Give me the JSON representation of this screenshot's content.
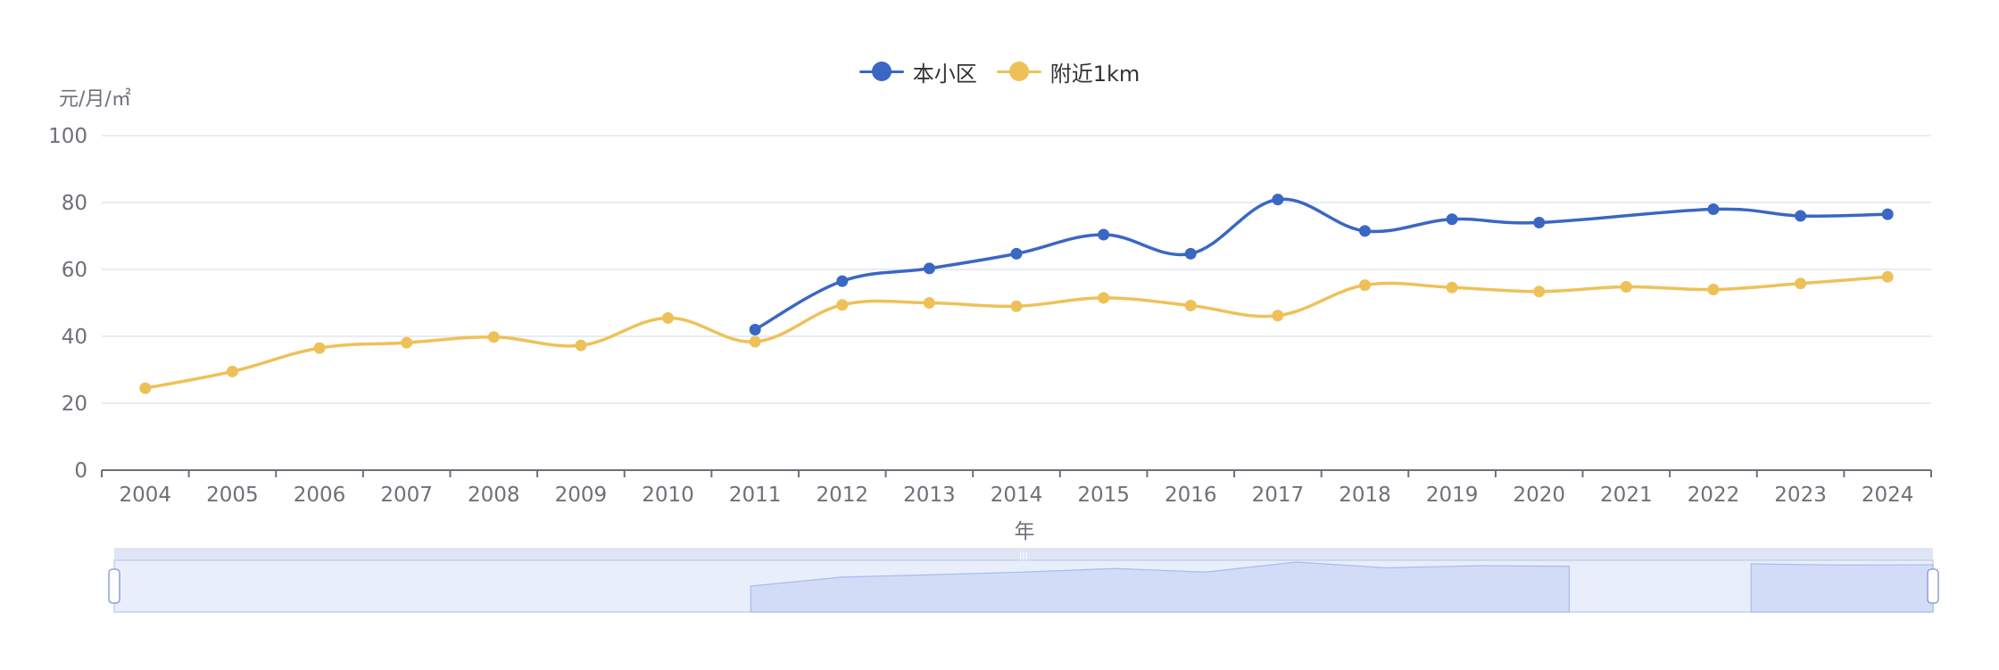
{
  "chart_data": {
    "type": "line",
    "y_unit_label": "元/月/㎡",
    "xlabel": "年",
    "ylim": [
      0,
      100
    ],
    "yticks": [
      0,
      20,
      40,
      60,
      80,
      100
    ],
    "categories": [
      "2004",
      "2005",
      "2006",
      "2007",
      "2008",
      "2009",
      "2010",
      "2011",
      "2012",
      "2013",
      "2014",
      "2015",
      "2016",
      "2017",
      "2018",
      "2019",
      "2020",
      "2021",
      "2022",
      "2023",
      "2024"
    ],
    "series": [
      {
        "name": "本小区",
        "color": "#3a67c4",
        "values": [
          null,
          null,
          null,
          null,
          null,
          null,
          null,
          42.0,
          56.5,
          60.3,
          64.7,
          70.4,
          64.7,
          80.9,
          71.5,
          75.0,
          74.0,
          null,
          78.0,
          76.0,
          76.5
        ]
      },
      {
        "name": "附近1km",
        "color": "#eec158",
        "values": [
          24.5,
          29.5,
          36.5,
          38.1,
          39.8,
          37.3,
          45.5,
          38.4,
          49.4,
          50.0,
          49.0,
          51.5,
          49.2,
          46.2,
          55.3,
          54.6,
          53.4,
          54.8,
          54.0,
          55.8,
          57.8
        ]
      }
    ],
    "grid": true,
    "legend_position": "top-center",
    "data_zoom": {
      "range_percent": [
        0,
        100
      ],
      "handle_label": "|||"
    }
  }
}
